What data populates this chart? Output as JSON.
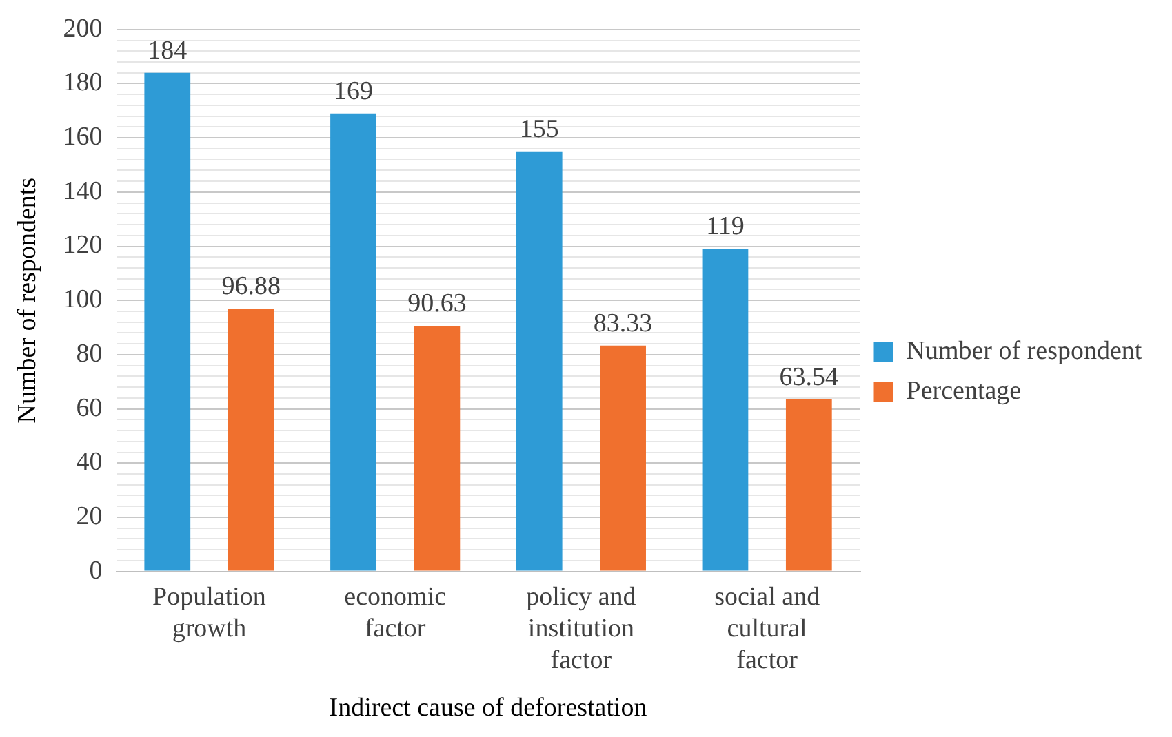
{
  "chart_data": {
    "type": "bar",
    "xlabel": "Indirect cause of deforestation",
    "ylabel": "Number of respondents",
    "categories": [
      "Population\ngrowth",
      "economic\nfactor",
      "policy and\ninstitution\nfactor",
      "social and\ncultural\nfactor"
    ],
    "series": [
      {
        "name": "Number of respondent",
        "color": "#2e9bd6",
        "values": [
          184,
          169,
          155,
          119
        ]
      },
      {
        "name": "Percentage",
        "color": "#f0702e",
        "values": [
          96.88,
          90.63,
          83.33,
          63.54
        ]
      }
    ],
    "ylim": [
      0,
      200
    ],
    "yticks": [
      0,
      {
        "value": 4,
        "label": null
      },
      {
        "value": 8,
        "label": null
      },
      {
        "value": 12,
        "label": null
      },
      {
        "value": 16,
        "label": null
      },
      20,
      {
        "value": 24,
        "label": null
      },
      {
        "value": 28,
        "label": null
      },
      {
        "value": 32,
        "label": null
      },
      {
        "value": 36,
        "label": null
      },
      40,
      {
        "value": 44,
        "label": null
      },
      {
        "value": 48,
        "label": null
      },
      {
        "value": 52,
        "label": null
      },
      {
        "value": 56,
        "label": null
      },
      60,
      {
        "value": 64,
        "label": null
      },
      {
        "value": 68,
        "label": null
      },
      {
        "value": 72,
        "label": null
      },
      {
        "value": 76,
        "label": null
      },
      80,
      {
        "value": 84,
        "label": null
      },
      {
        "value": 88,
        "label": null
      },
      {
        "value": 92,
        "label": null
      },
      {
        "value": 96,
        "label": null
      },
      100,
      {
        "value": 104,
        "label": null
      },
      {
        "value": 108,
        "label": null
      },
      {
        "value": 112,
        "label": null
      },
      {
        "value": 116,
        "label": null
      },
      120,
      {
        "value": 124,
        "label": null
      },
      {
        "value": 128,
        "label": null
      },
      {
        "value": 132,
        "label": null
      },
      {
        "value": 136,
        "label": null
      },
      140,
      {
        "value": 144,
        "label": null
      },
      {
        "value": 148,
        "label": null
      },
      {
        "value": 152,
        "label": null
      },
      {
        "value": 156,
        "label": null
      },
      160,
      {
        "value": 164,
        "label": null
      },
      {
        "value": 168,
        "label": null
      },
      {
        "value": 172,
        "label": null
      },
      {
        "value": 176,
        "label": null
      },
      180,
      {
        "value": 184,
        "label": null
      },
      {
        "value": 188,
        "label": null
      },
      {
        "value": 192,
        "label": null
      },
      {
        "value": 196,
        "label": null
      },
      200
    ],
    "grid": "y",
    "legend": "right",
    "data_labels": true
  }
}
